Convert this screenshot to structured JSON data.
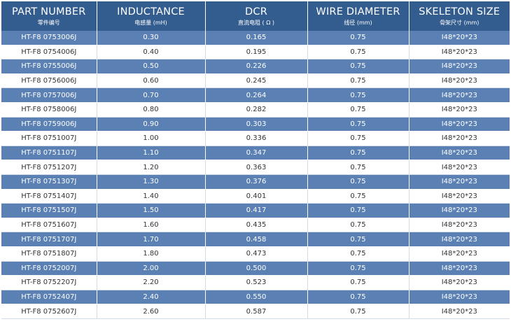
{
  "headers": [
    {
      "en": "PART NUMBER",
      "cn": "零件编号"
    },
    {
      "en": "INDUCTANCE",
      "cn": "电感量 (mH)"
    },
    {
      "en": "DCR",
      "cn": "直流电阻 ( Ω )"
    },
    {
      "en": "WIRE DIAMETER",
      "cn": "线径 (mm)"
    },
    {
      "en": "SKELETON SIZE",
      "cn": "骨架尺寸 (mm)"
    }
  ],
  "rows": [
    [
      "HT-F8 0753006J",
      "0.30",
      "0.165",
      "0.75",
      "I48*20*23"
    ],
    [
      "HT-F8 0754006J",
      "0.40",
      "0.195",
      "0.75",
      "I48*20*23"
    ],
    [
      "HT-F8 0755006J",
      "0.50",
      "0.226",
      "0.75",
      "I48*20*23"
    ],
    [
      "HT-F8 0756006J",
      "0.60",
      "0.245",
      "0.75",
      "I48*20*23"
    ],
    [
      "HT-F8 0757006J",
      "0.70",
      "0.264",
      "0.75",
      "I48*20*23"
    ],
    [
      "HT-F8 0758006J",
      "0.80",
      "0.282",
      "0.75",
      "I48*20*23"
    ],
    [
      "HT-F8 0759006J",
      "0.90",
      "0.303",
      "0.75",
      "I48*20*23"
    ],
    [
      "HT-F8 0751007J",
      "1.00",
      "0.336",
      "0.75",
      "I48*20*23"
    ],
    [
      "HT-F8 0751107J",
      "1.10",
      "0.347",
      "0.75",
      "I48*20*23"
    ],
    [
      "HT-F8 0751207J",
      "1.20",
      "0.363",
      "0.75",
      "I48*20*23"
    ],
    [
      "HT-F8 0751307J",
      "1.30",
      "0.376",
      "0.75",
      "I48*20*23"
    ],
    [
      "HT-F8 0751407J",
      "1.40",
      "0.401",
      "0.75",
      "I48*20*23"
    ],
    [
      "HT-F8 0751507J",
      "1.50",
      "0.417",
      "0.75",
      "I48*20*23"
    ],
    [
      "HT-F8 0751607J",
      "1.60",
      "0.435",
      "0.75",
      "I48*20*23"
    ],
    [
      "HT-F8 0751707J",
      "1.70",
      "0.458",
      "0.75",
      "I48*20*23"
    ],
    [
      "HT-F8 0751807J",
      "1.80",
      "0.473",
      "0.75",
      "I48*20*23"
    ],
    [
      "HT-F8 0752007J",
      "2.00",
      "0.500",
      "0.75",
      "I48*20*23"
    ],
    [
      "HT-F8 0752207J",
      "2.20",
      "0.523",
      "0.75",
      "I48*20*23"
    ],
    [
      "HT-F8 0752407J",
      "2.40",
      "0.550",
      "0.75",
      "I48*20*23"
    ],
    [
      "HT-F8 0752607J",
      "2.60",
      "0.587",
      "0.75",
      "I48*20*23"
    ]
  ],
  "colors": {
    "header_bg": "#345d8f",
    "alt_row_bg": "#5b80b3",
    "plain_row_bg": "#ffffff"
  }
}
